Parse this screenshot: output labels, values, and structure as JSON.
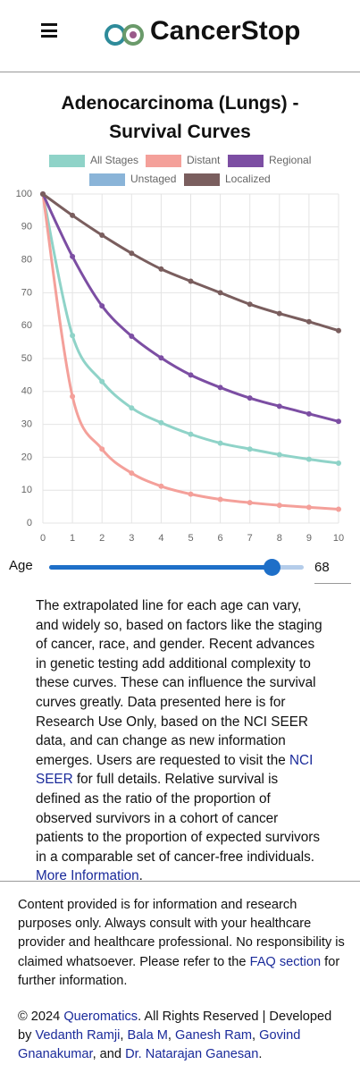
{
  "header": {
    "brand": "CancerStop"
  },
  "chart_data": {
    "type": "line",
    "title": "Adenocarcinoma (Lungs) - Survival Curves",
    "x": [
      0,
      1,
      2,
      3,
      4,
      5,
      6,
      7,
      8,
      9,
      10
    ],
    "xlim": [
      0,
      10
    ],
    "xticks": [
      0,
      1,
      2,
      3,
      4,
      5,
      6,
      7,
      8,
      9,
      10
    ],
    "ylim": [
      0,
      100
    ],
    "yticks": [
      0,
      10,
      20,
      30,
      40,
      50,
      60,
      70,
      80,
      90,
      100
    ],
    "grid": true,
    "legend": "top",
    "smooth": true,
    "series": [
      {
        "name": "All Stages",
        "color": "#8fd3c8",
        "values": [
          100,
          57,
          43,
          35,
          30.5,
          27,
          24.3,
          22.5,
          20.8,
          19.4,
          18.2
        ]
      },
      {
        "name": "Distant",
        "color": "#f4a09a",
        "values": [
          100,
          38.5,
          22.5,
          15.2,
          11.2,
          8.8,
          7.2,
          6.2,
          5.4,
          4.8,
          4.2
        ]
      },
      {
        "name": "Regional",
        "color": "#7c4ea3",
        "values": [
          100,
          81,
          66,
          56.8,
          50.2,
          45,
          41.2,
          38,
          35.5,
          33.2,
          30.9
        ]
      },
      {
        "name": "Unstaged",
        "color": "#8ab4d8",
        "values": [
          null,
          null,
          null,
          null,
          null,
          null,
          null,
          null,
          null,
          null,
          null
        ]
      },
      {
        "name": "Localized",
        "color": "#7a5e5e",
        "values": [
          100,
          93.5,
          87.5,
          82,
          77.2,
          73.5,
          70,
          66.5,
          63.7,
          61.2,
          58.5
        ]
      }
    ]
  },
  "slider": {
    "label": "Age",
    "value": 68
  },
  "description": [
    "The extrapolated line for each age can vary, and widely so, based on factors like the staging of cancer, race, and gender. Recent advances in genetic testing add additional complexity to these curves. These can influence the survival curves greatly. Data presented here is for Research Use Only, based on the NCI SEER data, and can change as new information emerges. Users are requested to visit the ",
    "NCI SEER",
    " for full details. Relative survival is defined as the ratio of the proportion of observed survivors in a cohort of cancer patients to the proportion of expected survivors in a comparable set of cancer-free individuals. ",
    "More Information",
    "."
  ],
  "disclaimer": [
    "Content provided is for information and research purposes only. Always consult with your healthcare provider and healthcare professional. No responsibility is claimed whatsoever. Please refer to the ",
    "FAQ section",
    " for further information."
  ],
  "copyright": [
    "© 2024 ",
    "Queromatics",
    ". All Rights Reserved | Developed by ",
    "Vedanth Ramji",
    ", ",
    "Bala M",
    ", ",
    "Ganesh Ram",
    ", ",
    "Govind Gnanakumar",
    ", and ",
    "Dr. Natarajan Ganesan",
    "."
  ]
}
